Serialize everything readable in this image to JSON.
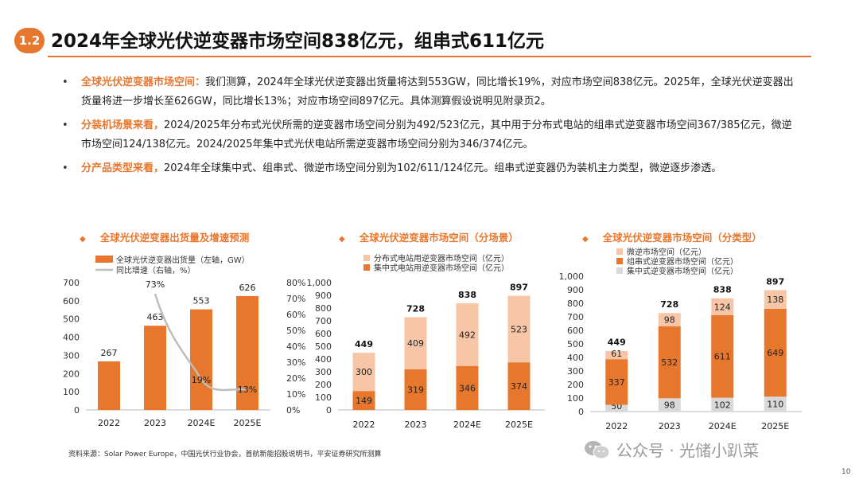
{
  "header": {
    "section_number": "1.2",
    "title": "2024年全球光伏逆变器市场空间838亿元，组串式611亿元"
  },
  "bullets": [
    {
      "highlight": "全球光伏逆变器市场空间：",
      "text": "我们测算，2024年全球光伏逆变器出货量将达到553GW，同比增长19%，对应市场空间838亿元。2025年，全球光伏逆变器出货量将进一步增长至626GW，同比增长13%；对应市场空间897亿元。具体测算假设说明见附录页2。"
    },
    {
      "highlight": "分装机场景来看，",
      "text": "2024/2025年分布式光伏所需的逆变器市场空间分别为492/523亿元，其中用于分布式电站的组串式逆变器市场空间367/385亿元，微逆市场空间124/138亿元。2024/2025年集中式光伏电站所需逆变器市场空间分别为346/374亿元。"
    },
    {
      "highlight": "分产品类型来看，",
      "text": "2024年全球集中式、组串式、微逆市场空间分别为102/611/124亿元。组串式逆变器仍为装机主力类型，微逆逐步渗透。"
    }
  ],
  "bullet_symbol": "•",
  "chart_title_symbol": "◆",
  "charts": [
    {
      "title": "全球光伏逆变器出货量及增速预测"
    },
    {
      "title": "全球光伏逆变器市场空间（分场景）"
    },
    {
      "title": "全球光伏逆变器市场空间（分类型）"
    }
  ],
  "chart_data": [
    {
      "type": "bar",
      "categories": [
        "2022",
        "2023",
        "2024E",
        "2025E"
      ],
      "series": [
        {
          "name": "全球光伏逆变器出货量（左轴，GW）",
          "type": "bar",
          "values": [
            267,
            463,
            553,
            626
          ],
          "color": "#e8772e"
        },
        {
          "name": "同比增速（右轴，%）",
          "type": "line",
          "values": [
            null,
            0.73,
            0.19,
            0.13
          ],
          "labels": [
            "",
            "73%",
            "19%",
            "13%"
          ],
          "color": "#bdbdbd"
        }
      ],
      "y_left": {
        "min": 0,
        "max": 700,
        "ticks": [
          "0",
          "100",
          "200",
          "300",
          "400",
          "500",
          "600",
          "700"
        ]
      },
      "y_right": {
        "min": 0,
        "max": 0.8,
        "ticks": [
          "0%",
          "10%",
          "20%",
          "30%",
          "40%",
          "50%",
          "60%",
          "70%",
          "80%"
        ]
      },
      "legend": "top-left"
    },
    {
      "type": "bar",
      "stacked": true,
      "categories": [
        "2022",
        "2023",
        "2024E",
        "2025E"
      ],
      "series": [
        {
          "name": "集中式电站用逆变器市场空间（亿元）",
          "values": [
            149,
            319,
            346,
            374
          ],
          "color": "#e8772e"
        },
        {
          "name": "分布式电站用逆变器市场空间（亿元）",
          "values": [
            300,
            409,
            492,
            523
          ],
          "color": "#f6c6a6"
        }
      ],
      "totals": [
        449,
        728,
        838,
        897
      ],
      "y": {
        "min": 0,
        "max": 1000,
        "ticks": [
          "0",
          "100",
          "200",
          "300",
          "400",
          "500",
          "600",
          "700",
          "800",
          "900",
          "1,000"
        ]
      },
      "legend": "top"
    },
    {
      "type": "bar",
      "stacked": true,
      "categories": [
        "2022",
        "2023",
        "2024E",
        "2025E"
      ],
      "series": [
        {
          "name": "集中式逆变器市场空间（亿元）",
          "values": [
            50,
            98,
            102,
            110
          ],
          "color": "#d9d9d9"
        },
        {
          "name": "组串式逆变器市场空间（亿元）",
          "values": [
            337,
            532,
            611,
            649
          ],
          "color": "#e8772e"
        },
        {
          "name": "微逆市场空间（亿元）",
          "values": [
            61,
            98,
            124,
            138
          ],
          "color": "#f6c6a6"
        }
      ],
      "totals": [
        449,
        728,
        838,
        897
      ],
      "y": {
        "min": 0,
        "max": 1000,
        "ticks": [
          "0",
          "100",
          "200",
          "300",
          "400",
          "500",
          "600",
          "700",
          "800",
          "900",
          "1,000"
        ]
      },
      "legend": "top"
    }
  ],
  "source": "资料来源：Solar Power Europe，中国光伏行业协会，首航新能招股说明书，平安证券研究所测算",
  "watermark": "公众号 · 光储小趴菜",
  "page_number": "10"
}
